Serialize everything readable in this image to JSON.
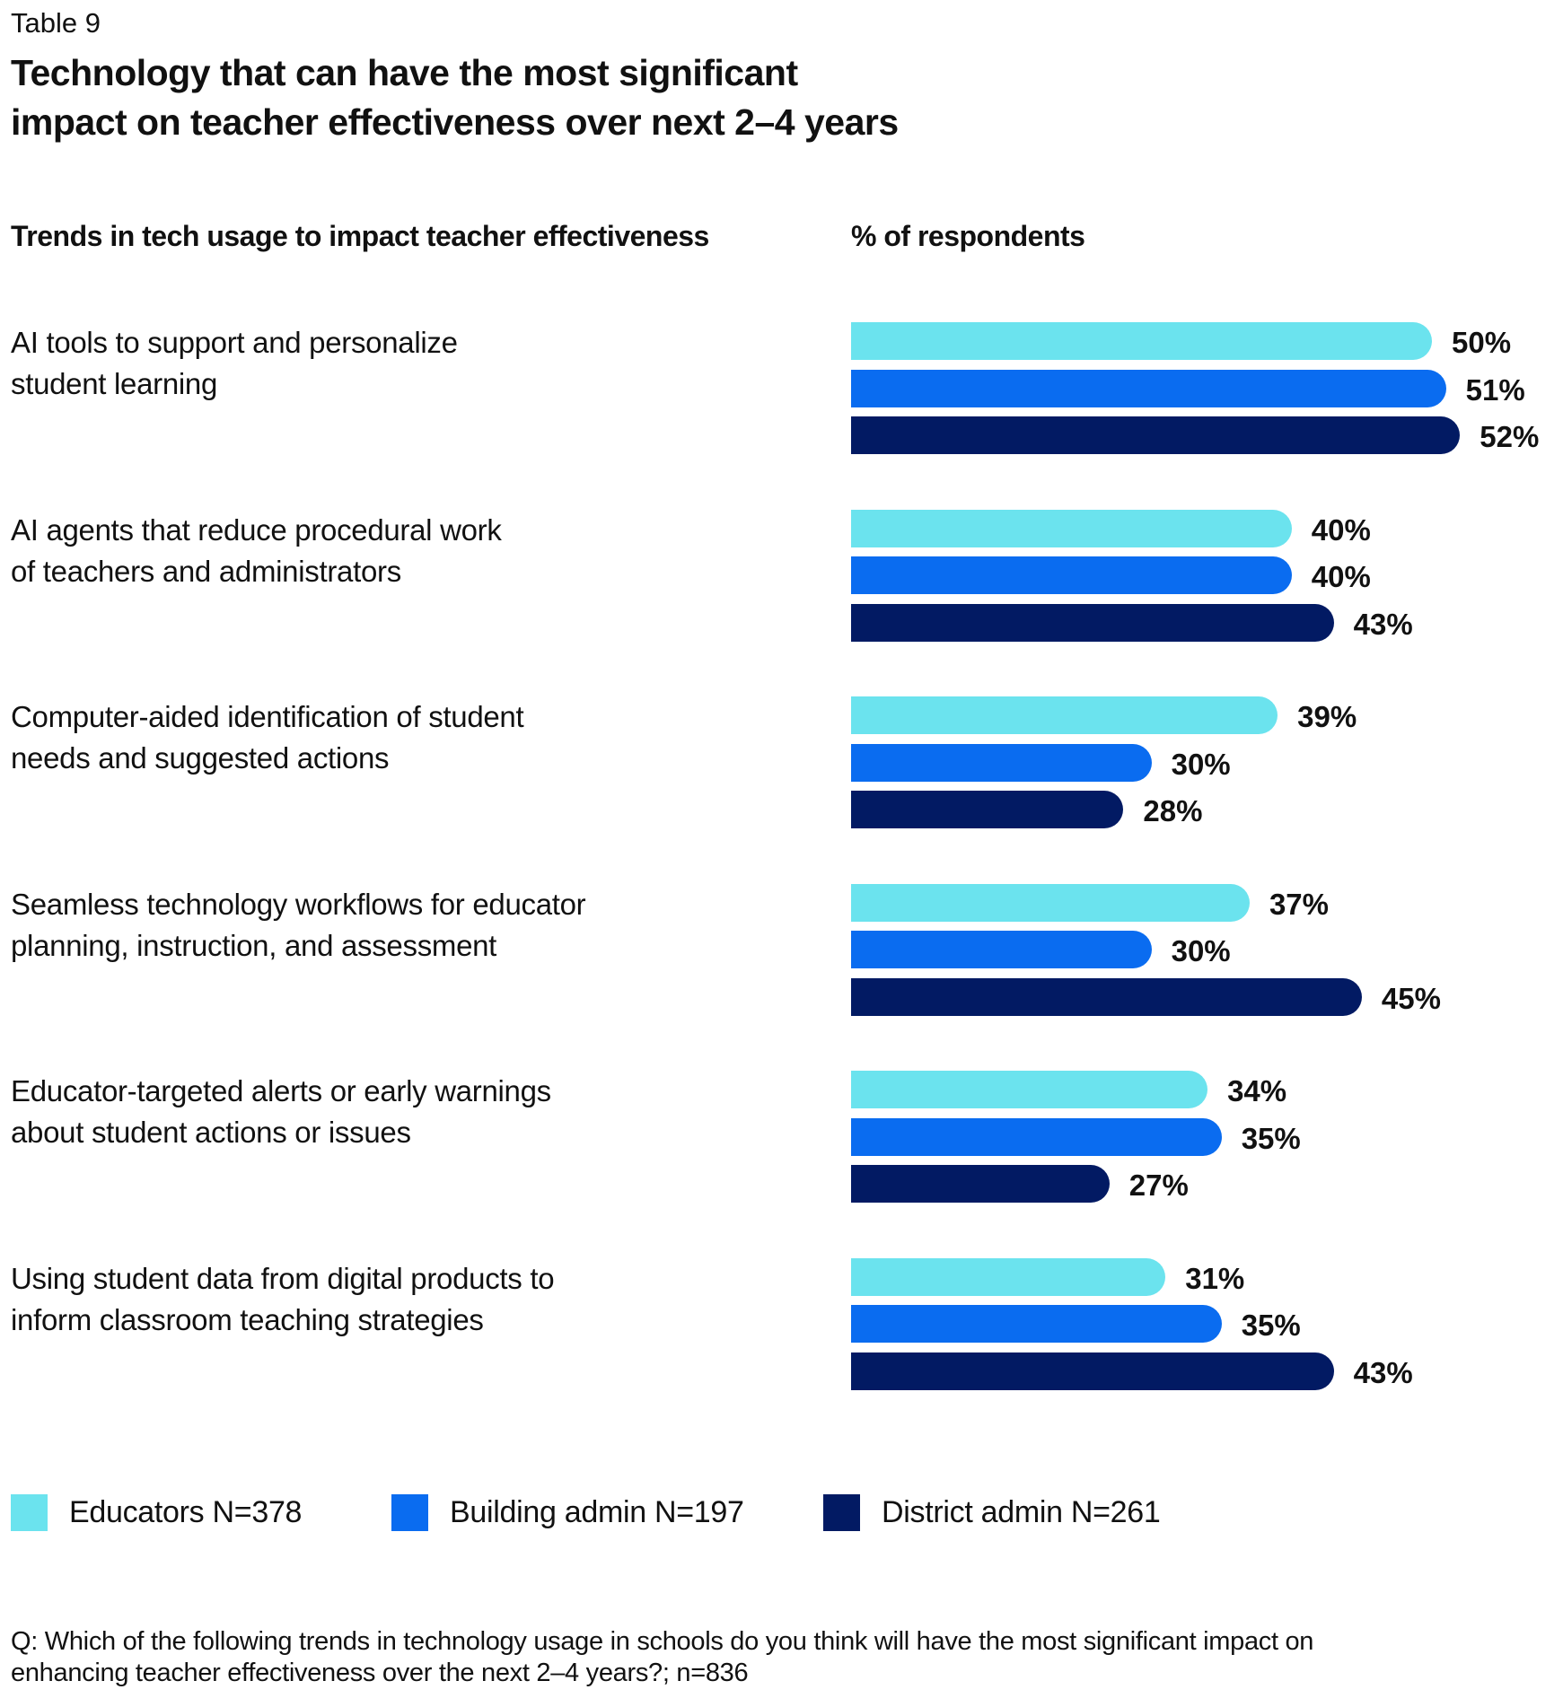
{
  "kicker": "Table 9",
  "title_line1": "Technology that can have the most significant",
  "title_line2": "impact on teacher effectiveness over next 2–4 years",
  "column_headers": {
    "left": "Trends in tech usage to impact teacher effectiveness",
    "right": "% of respondents"
  },
  "colors": {
    "Educators": "#6BE3EE",
    "Building admin": "#0A6CF0",
    "District admin": "#021A63"
  },
  "chart_data": {
    "type": "bar",
    "orientation": "horizontal",
    "title": "Technology that can have the most significant impact on teacher effectiveness over next 2–4 years",
    "xlabel": "% of respondents",
    "ylabel": "Trends in tech usage to impact teacher effectiveness",
    "legend_position": "bottom-left",
    "grid": false,
    "categories": [
      [
        "AI tools to support and personalize",
        "student learning"
      ],
      [
        "AI agents that reduce procedural work",
        "of teachers and administrators"
      ],
      [
        "Computer-aided identification of student",
        "needs and suggested actions"
      ],
      [
        "Seamless technology workflows for educator",
        "planning, instruction, and assessment"
      ],
      [
        "Educator-targeted alerts or early warnings",
        "about student actions or issues"
      ],
      [
        "Using student data from digital products to",
        "inform classroom teaching strategies"
      ]
    ],
    "series": [
      {
        "name": "Educators N=378",
        "color": "#6BE3EE",
        "values": [
          50,
          40,
          39,
          37,
          34,
          31
        ]
      },
      {
        "name": "Building admin N=197",
        "color": "#0A6CF0",
        "values": [
          51,
          40,
          30,
          30,
          35,
          35
        ]
      },
      {
        "name": "District admin N=261",
        "color": "#021A63",
        "values": [
          52,
          43,
          28,
          45,
          27,
          43
        ]
      }
    ],
    "value_suffix": "%"
  },
  "footnote_line1": "Q: Which of the following trends in technology usage in schools do you think will have the most significant impact on",
  "footnote_line2": "enhancing teacher effectiveness over the next 2–4 years?; n=836"
}
